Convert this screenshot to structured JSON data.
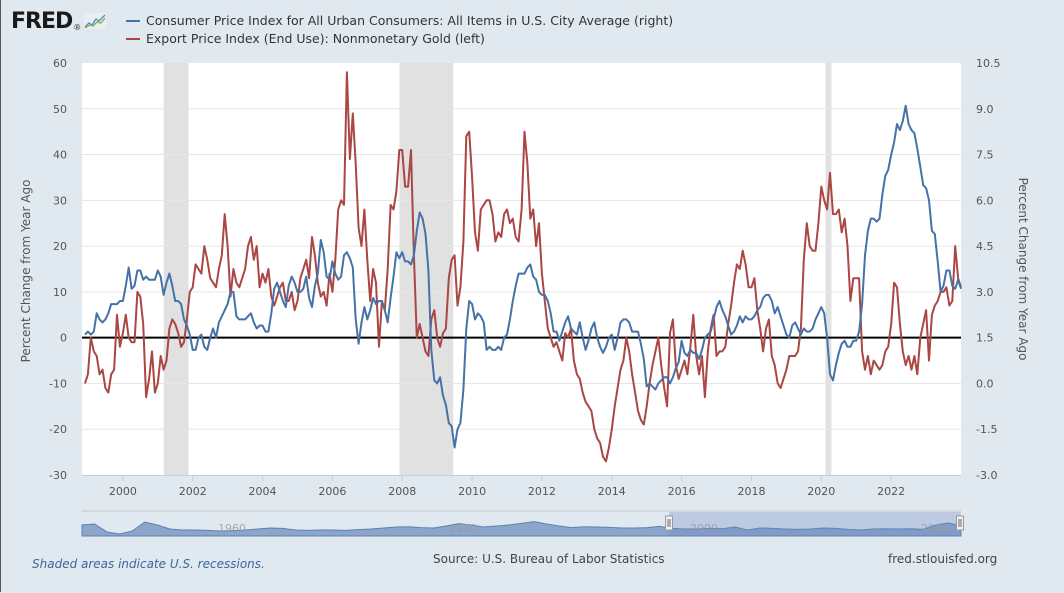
{
  "header": {
    "logo_text": "FRED",
    "legend": [
      {
        "label": "Consumer Price Index for All Urban Consumers: All Items in U.S. City Average (right)",
        "color": "#4572a7"
      },
      {
        "label": "Export Price Index (End Use): Nonmonetary Gold (left)",
        "color": "#aa4643"
      }
    ]
  },
  "chart_data": {
    "type": "line",
    "start": {
      "year": 1998,
      "month": 12
    },
    "frequency": "monthly",
    "xlim": [
      1998.83,
      2024.0
    ],
    "x_ticks": [
      "2000",
      "2002",
      "2004",
      "2006",
      "2008",
      "2010",
      "2012",
      "2014",
      "2016",
      "2018",
      "2020",
      "2022"
    ],
    "x_tick_years": [
      2000,
      2002,
      2004,
      2006,
      2008,
      2010,
      2012,
      2014,
      2016,
      2018,
      2020,
      2022
    ],
    "left_axis": {
      "label": "Percent Change from Year Ago",
      "ylim": [
        -30,
        60
      ],
      "ticks": [
        "60",
        "50",
        "40",
        "30",
        "20",
        "10",
        "0",
        "-10",
        "-20",
        "-30"
      ],
      "tick_values": [
        60,
        50,
        40,
        30,
        20,
        10,
        0,
        -10,
        -20,
        -30
      ]
    },
    "right_axis": {
      "label": "Percent Change from Year Ago",
      "ylim": [
        -3.0,
        10.5
      ],
      "ticks": [
        "10.5",
        "9.0",
        "7.5",
        "6.0",
        "4.5",
        "3.0",
        "1.5",
        "0.0",
        "-1.5",
        "-3.0"
      ],
      "tick_values": [
        10.5,
        9.0,
        7.5,
        6.0,
        4.5,
        3.0,
        1.5,
        0.0,
        -1.5,
        -3.0
      ]
    },
    "zero_line_left": 0,
    "recessions": [
      [
        2001.17,
        2001.88
      ],
      [
        2007.92,
        2009.46
      ],
      [
        2020.12,
        2020.29
      ]
    ],
    "series": [
      {
        "name": "Consumer Price Index for All Urban Consumers: All Items in U.S. City Average (right)",
        "axis": "right",
        "color": "#4572a7",
        "values": [
          1.6,
          1.7,
          1.6,
          1.7,
          2.3,
          2.1,
          2.0,
          2.1,
          2.3,
          2.6,
          2.6,
          2.6,
          2.7,
          2.7,
          3.2,
          3.8,
          3.1,
          3.2,
          3.7,
          3.7,
          3.4,
          3.5,
          3.4,
          3.4,
          3.4,
          3.7,
          3.5,
          2.9,
          3.3,
          3.6,
          3.2,
          2.7,
          2.7,
          2.6,
          2.1,
          1.9,
          1.6,
          1.1,
          1.1,
          1.5,
          1.6,
          1.2,
          1.1,
          1.5,
          1.8,
          1.5,
          2.0,
          2.2,
          2.4,
          2.6,
          3.0,
          3.0,
          2.2,
          2.1,
          2.1,
          2.1,
          2.2,
          2.3,
          2.0,
          1.8,
          1.9,
          1.9,
          1.7,
          1.7,
          2.3,
          3.1,
          3.3,
          3.0,
          2.7,
          2.5,
          3.2,
          3.5,
          3.3,
          3.0,
          3.0,
          3.1,
          3.5,
          2.8,
          2.5,
          3.2,
          3.6,
          4.7,
          4.3,
          3.5,
          3.4,
          4.0,
          3.6,
          3.4,
          3.5,
          4.2,
          4.3,
          4.1,
          3.8,
          2.1,
          1.3,
          2.0,
          2.5,
          2.1,
          2.4,
          2.8,
          2.6,
          2.7,
          2.7,
          2.4,
          2.0,
          2.8,
          3.5,
          4.3,
          4.1,
          4.3,
          4.0,
          4.0,
          3.9,
          4.2,
          5.0,
          5.6,
          5.4,
          4.9,
          3.7,
          1.1,
          0.1,
          0.0,
          0.2,
          -0.4,
          -0.7,
          -1.3,
          -1.4,
          -2.1,
          -1.5,
          -1.3,
          -0.2,
          1.8,
          2.7,
          2.6,
          2.1,
          2.3,
          2.2,
          2.0,
          1.1,
          1.2,
          1.1,
          1.1,
          1.2,
          1.1,
          1.5,
          1.6,
          2.1,
          2.7,
          3.2,
          3.6,
          3.6,
          3.6,
          3.8,
          3.9,
          3.5,
          3.4,
          3.0,
          2.9,
          2.9,
          2.7,
          2.3,
          1.7,
          1.7,
          1.4,
          1.7,
          2.0,
          2.2,
          1.8,
          1.7,
          1.6,
          2.0,
          1.5,
          1.1,
          1.4,
          1.8,
          2.0,
          1.5,
          1.2,
          1.0,
          1.2,
          1.5,
          1.6,
          1.1,
          1.5,
          2.0,
          2.1,
          2.1,
          2.0,
          1.7,
          1.7,
          1.7,
          1.3,
          0.8,
          -0.1,
          0.0,
          -0.1,
          -0.2,
          0.0,
          0.1,
          0.2,
          0.2,
          0.0,
          0.2,
          0.5,
          0.7,
          1.4,
          1.0,
          0.9,
          1.1,
          1.0,
          1.0,
          0.8,
          1.1,
          1.5,
          1.6,
          1.7,
          2.1,
          2.5,
          2.7,
          2.4,
          2.2,
          1.9,
          1.6,
          1.7,
          1.9,
          2.2,
          2.0,
          2.2,
          2.1,
          2.1,
          2.2,
          2.4,
          2.5,
          2.8,
          2.9,
          2.9,
          2.7,
          2.3,
          2.5,
          2.2,
          1.9,
          1.6,
          1.5,
          1.9,
          2.0,
          1.8,
          1.6,
          1.8,
          1.7,
          1.7,
          1.8,
          2.1,
          2.3,
          2.5,
          2.3,
          1.5,
          0.3,
          0.1,
          0.6,
          1.0,
          1.3,
          1.4,
          1.2,
          1.2,
          1.4,
          1.4,
          1.7,
          2.6,
          4.2,
          5.0,
          5.4,
          5.4,
          5.3,
          5.4,
          6.2,
          6.8,
          7.0,
          7.5,
          7.9,
          8.5,
          8.3,
          8.6,
          9.1,
          8.5,
          8.3,
          8.2,
          7.7,
          7.1,
          6.5,
          6.4,
          6.0,
          5.0,
          4.9,
          4.0,
          3.0,
          3.2,
          3.7,
          3.7,
          3.2,
          3.1,
          3.4,
          3.1
        ]
      },
      {
        "name": "Export Price Index (End Use): Nonmonetary Gold (left)",
        "axis": "left",
        "color": "#aa4643",
        "values": [
          -10,
          -8,
          0,
          -3,
          -4,
          -8,
          -7,
          -11,
          -12,
          -8,
          -7,
          5,
          -2,
          1,
          5,
          0,
          -1,
          -1,
          10,
          9,
          3,
          -13,
          -9,
          -3,
          -12,
          -10,
          -4,
          -7,
          -5,
          2,
          4,
          3,
          1,
          -2,
          -1,
          4,
          10,
          11,
          16,
          15,
          14,
          20,
          17,
          13,
          12,
          11,
          15,
          18,
          27,
          20,
          9,
          15,
          12,
          11,
          13,
          15,
          20,
          22,
          17,
          20,
          11,
          14,
          12,
          15,
          9,
          7,
          9,
          11,
          12,
          8,
          8,
          10,
          6,
          8,
          13,
          15,
          17,
          13,
          22,
          18,
          12,
          9,
          10,
          7,
          14,
          10,
          17,
          28,
          30,
          29,
          58,
          39,
          49,
          38,
          24,
          20,
          28,
          17,
          8,
          15,
          12,
          -2,
          8,
          6,
          15,
          29,
          28,
          32,
          41,
          41,
          33,
          33,
          41,
          18,
          0,
          3,
          0,
          -3,
          -4,
          4,
          6,
          0,
          -2,
          1,
          2,
          13,
          17,
          18,
          7,
          11,
          21,
          44,
          45,
          35,
          23,
          19,
          28,
          29,
          30,
          30,
          27,
          21,
          23,
          22,
          27,
          28,
          25,
          26,
          22,
          21,
          28,
          45,
          38,
          26,
          28,
          20,
          25,
          14,
          8,
          2,
          0,
          -2,
          -1,
          -3,
          -5,
          1,
          0,
          2,
          -5,
          -8,
          -9,
          -12,
          -14,
          -15,
          -16,
          -20,
          -22,
          -23,
          -26,
          -27,
          -24,
          -20,
          -15,
          -11,
          -7,
          -5,
          0,
          -3,
          -8,
          -12,
          -16,
          -18,
          -19,
          -15,
          -10,
          -6,
          -3,
          0,
          -6,
          -11,
          -15,
          1,
          4,
          -6,
          -9,
          -7,
          -5,
          -8,
          -2,
          5,
          -4,
          -8,
          -4,
          -13,
          -3,
          2,
          5,
          -4,
          -3,
          -3,
          -2,
          3,
          7,
          12,
          16,
          15,
          19,
          16,
          11,
          11,
          13,
          6,
          2,
          -3,
          2,
          4,
          -4,
          -6,
          -10,
          -11,
          -9,
          -7,
          -4,
          -4,
          -4,
          -3,
          2,
          17,
          25,
          20,
          19,
          19,
          25,
          33,
          30,
          28,
          36,
          27,
          27,
          28,
          23,
          26,
          20,
          8,
          13,
          13,
          13,
          -3,
          -7,
          -4,
          -8,
          -5,
          -6,
          -7,
          -6,
          -3,
          -2,
          3,
          12,
          11,
          3,
          -3,
          -6,
          -4,
          -7,
          -4,
          -8,
          0,
          3,
          6,
          -5,
          5,
          7,
          8,
          10,
          10,
          11,
          7,
          8,
          20,
          13,
          11
        ]
      }
    ],
    "navigator": {
      "labels": [
        "1960",
        "1980",
        "2000",
        "2020"
      ],
      "selected_range": [
        1998.83,
        2024.0
      ]
    }
  },
  "footer": {
    "note": "Shaded areas indicate U.S. recessions.",
    "source": "Source: U.S. Bureau of Labor Statistics",
    "site": "fred.stlouisfed.org"
  }
}
